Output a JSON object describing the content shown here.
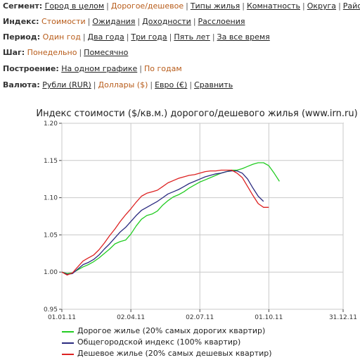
{
  "nav": [
    {
      "label": "Сегмент:",
      "items": [
        {
          "text": "Город в целом",
          "active": false
        },
        {
          "text": "Дорогое/дешевое",
          "active": true
        },
        {
          "text": "Типы жилья",
          "active": false
        },
        {
          "text": "Комнатность",
          "active": false
        },
        {
          "text": "Округа",
          "active": false
        },
        {
          "text": "Районы",
          "active": false
        }
      ]
    },
    {
      "label": "Индекс:",
      "items": [
        {
          "text": "Стоимости",
          "active": true
        },
        {
          "text": "Ожидания",
          "active": false
        },
        {
          "text": "Доходности",
          "active": false
        },
        {
          "text": "Расслоения",
          "active": false
        }
      ]
    },
    {
      "label": "Период:",
      "items": [
        {
          "text": "Один год",
          "active": true
        },
        {
          "text": "Два года",
          "active": false
        },
        {
          "text": "Три года",
          "active": false
        },
        {
          "text": "Пять лет",
          "active": false
        },
        {
          "text": "За все время",
          "active": false
        }
      ]
    },
    {
      "label": "Шаг:",
      "items": [
        {
          "text": "Понедельно",
          "active": true
        },
        {
          "text": "Помесячно",
          "active": false
        }
      ]
    },
    {
      "label": "Построение:",
      "items": [
        {
          "text": "На одном графике",
          "active": false
        },
        {
          "text": "По годам",
          "active": true
        }
      ]
    },
    {
      "label": "Валюта:",
      "items": [
        {
          "text": "Рубли (RUR)",
          "active": false
        },
        {
          "text": "Доллары ($)",
          "active": true
        },
        {
          "text": "Евро (€)",
          "active": false
        },
        {
          "text": "Сравнить",
          "active": false
        }
      ]
    }
  ],
  "chart_data": {
    "type": "line",
    "title": "Индекс стоимости ($/кв.м.) дорогого/дешевого жилья (www.irn.ru)",
    "xlabel": "",
    "ylabel": "",
    "ylim": [
      0.95,
      1.2
    ],
    "yticks": [
      "0.95",
      "1.00",
      "1.05",
      "1.10",
      "1.15",
      "1.20"
    ],
    "xticks": [
      "01.01.11",
      "02.04.11",
      "02.07.11",
      "01.10.11",
      "31.12.11"
    ],
    "grid": true,
    "legend_position": "bottom",
    "series": [
      {
        "name": "Дорогое жилье (20% самых дорогих квартир)",
        "color": "#22cc22",
        "values": [
          1.0,
          0.998,
          0.999,
          1.003,
          1.007,
          1.01,
          1.014,
          1.019,
          1.025,
          1.031,
          1.038,
          1.041,
          1.043,
          1.051,
          1.062,
          1.071,
          1.076,
          1.078,
          1.082,
          1.09,
          1.096,
          1.101,
          1.104,
          1.108,
          1.113,
          1.117,
          1.121,
          1.124,
          1.127,
          1.13,
          1.133,
          1.135,
          1.137,
          1.137,
          1.139,
          1.142,
          1.145,
          1.147,
          1.147,
          1.143,
          1.133,
          1.122
        ]
      },
      {
        "name": "Общегородской индекс (100% квартир)",
        "color": "#2b2b80",
        "values": [
          1.0,
          0.997,
          0.998,
          1.004,
          1.01,
          1.013,
          1.017,
          1.023,
          1.031,
          1.038,
          1.046,
          1.054,
          1.06,
          1.068,
          1.076,
          1.083,
          1.087,
          1.091,
          1.095,
          1.1,
          1.105,
          1.108,
          1.111,
          1.115,
          1.119,
          1.122,
          1.125,
          1.128,
          1.13,
          1.132,
          1.133,
          1.135,
          1.136,
          1.136,
          1.133,
          1.125,
          1.113,
          1.102,
          1.095
        ]
      },
      {
        "name": "Дешевое жилье (20% самых дешевых квартир)",
        "color": "#dd2222",
        "values": [
          1.0,
          0.996,
          0.999,
          1.007,
          1.015,
          1.019,
          1.023,
          1.03,
          1.039,
          1.049,
          1.058,
          1.068,
          1.077,
          1.085,
          1.094,
          1.102,
          1.106,
          1.108,
          1.11,
          1.115,
          1.12,
          1.123,
          1.126,
          1.128,
          1.13,
          1.131,
          1.133,
          1.135,
          1.136,
          1.136,
          1.137,
          1.137,
          1.137,
          1.133,
          1.127,
          1.115,
          1.103,
          1.092,
          1.087,
          1.087
        ]
      }
    ]
  }
}
